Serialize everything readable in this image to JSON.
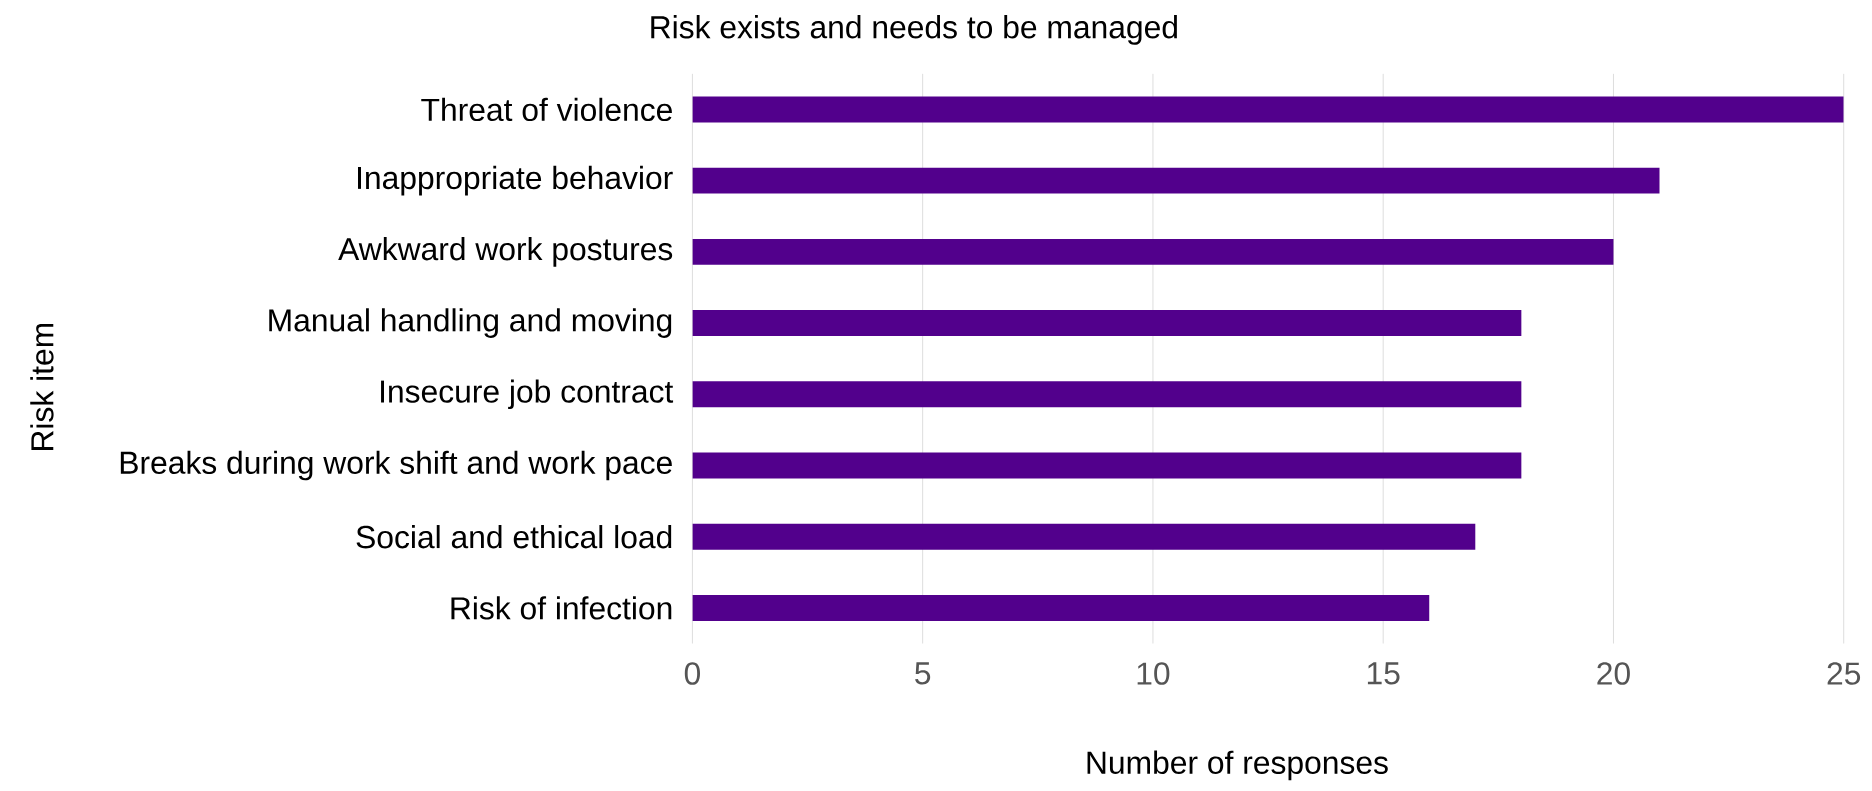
{
  "chart_data": {
    "type": "bar",
    "orientation": "horizontal",
    "title": "Risk exists and needs to be managed",
    "xlabel": "Number of responses",
    "ylabel": "Risk item",
    "categories": [
      "Threat of violence",
      "Inappropriate behavior",
      "Awkward work postures",
      "Manual handling and moving",
      "Insecure job contract",
      "Breaks during work shift and work pace",
      "Social and ethical load",
      "Risk of infection"
    ],
    "values": [
      25,
      21,
      20,
      18,
      18,
      18,
      17,
      16
    ],
    "color": "#52008c",
    "xlim": [
      0,
      25
    ],
    "xticks": [
      0,
      5,
      10,
      15,
      20,
      25
    ],
    "grid": "x"
  }
}
